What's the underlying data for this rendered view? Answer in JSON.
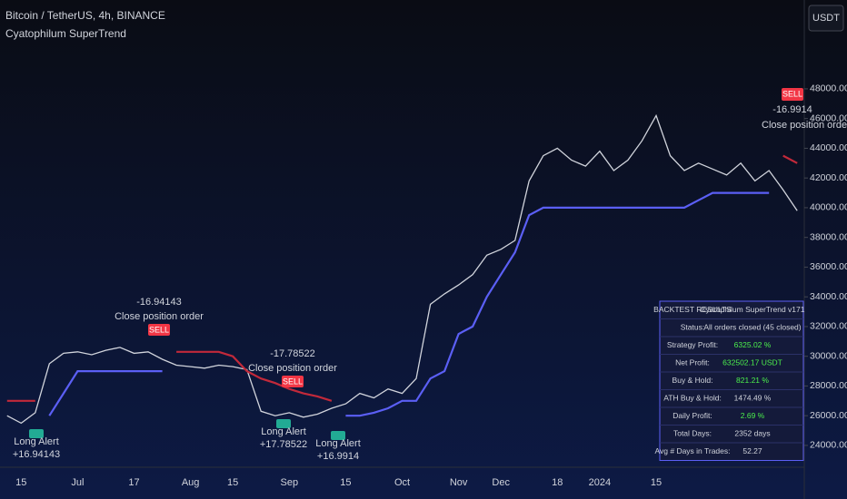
{
  "header": {
    "symbol": "Bitcoin / TetherUS, 4h, BINANCE",
    "indicator": "Cyatophilum SuperTrend",
    "currency_button": "USDT"
  },
  "chart_data": {
    "type": "line",
    "categories": [
      null,
      "15",
      null,
      null,
      null,
      "Jul",
      null,
      null,
      null,
      "17",
      null,
      null,
      null,
      "Aug",
      null,
      null,
      "15",
      null,
      null,
      null,
      "Sep",
      null,
      null,
      null,
      "15",
      null,
      null,
      null,
      "Oct",
      null,
      null,
      null,
      "Nov",
      null,
      null,
      "Dec",
      null,
      null,
      null,
      "18",
      null,
      null,
      "2024",
      null,
      null,
      null,
      "15",
      null,
      null,
      null,
      null,
      null,
      null,
      null,
      null,
      null,
      null
    ],
    "series": [
      {
        "color": "#d1d4dc",
        "values": [
          26000,
          25500,
          26200,
          29500,
          30200,
          30300,
          30100,
          30400,
          30600,
          30200,
          30300,
          29800,
          29400,
          29300,
          29200,
          29400,
          29300,
          29100,
          26300,
          26000,
          26200,
          25900,
          26100,
          26500,
          26800,
          27500,
          27200,
          27800,
          27500,
          28500,
          33500,
          34200,
          34800,
          35500,
          36800,
          37200,
          37800,
          41800,
          43500,
          44000,
          43200,
          42800,
          43800,
          42500,
          43200,
          44500,
          46200,
          43500,
          42500,
          43000,
          42600,
          42200,
          43000,
          41800,
          42500,
          41200,
          39800
        ]
      },
      {
        "color": "#5b5ff5",
        "values": [
          null,
          null,
          null,
          26000,
          27500,
          29000,
          29000,
          29000,
          29000,
          29000,
          29000,
          29000,
          null,
          null,
          null,
          null,
          null,
          null,
          null,
          null,
          null,
          null,
          null,
          null,
          26000,
          26000,
          26200,
          26500,
          27000,
          27000,
          28500,
          29000,
          31500,
          32000,
          34000,
          35500,
          37000,
          39500,
          40000,
          40000,
          40000,
          40000,
          40000,
          40000,
          40000,
          40000,
          40000,
          40000,
          40000,
          40500,
          41000,
          41000,
          41000,
          41000,
          41000,
          null,
          null
        ]
      },
      {
        "color": "#c2293a",
        "values": [
          27000,
          27000,
          27000,
          null,
          null,
          null,
          null,
          null,
          null,
          null,
          null,
          null,
          30300,
          30300,
          30300,
          30300,
          30000,
          29000,
          28500,
          28200,
          27800,
          27500,
          27300,
          27000,
          null,
          null,
          null,
          null,
          null,
          null,
          null,
          null,
          null,
          null,
          null,
          null,
          null,
          null,
          null,
          null,
          null,
          null,
          null,
          null,
          null,
          null,
          null,
          null,
          null,
          null,
          null,
          null,
          null,
          null,
          null,
          43500,
          43000
        ]
      }
    ],
    "ylim": [
      22530,
      53980
    ],
    "yticks": [
      {
        "value": 24000,
        "label": "24000.00"
      },
      {
        "value": 26000,
        "label": "26000.00"
      },
      {
        "value": 28000,
        "label": "28000.00"
      },
      {
        "value": 30000,
        "label": "30000.00"
      },
      {
        "value": 32000,
        "label": "32000.00"
      },
      {
        "value": 34000,
        "label": "34000.00"
      },
      {
        "value": 36000,
        "label": "36000.00"
      },
      {
        "value": 38000,
        "label": "38000.00"
      },
      {
        "value": 40000,
        "label": "40000.00"
      },
      {
        "value": 42000,
        "label": "42000.00"
      },
      {
        "value": 44000,
        "label": "44000.00"
      },
      {
        "value": 46000,
        "label": "46000.00"
      },
      {
        "value": 48000,
        "label": "48000.00"
      }
    ],
    "annotations": [
      {
        "profit": "-16.94143",
        "text": "Close position order",
        "tag": "SELL"
      },
      {
        "profit": "-17.78522",
        "text": "Close position order",
        "tag": "SELL"
      },
      {
        "profit": "-16.9914",
        "text": "Close position order",
        "tag": "SELL"
      },
      {
        "text": "Long Alert",
        "profit": "+16.94143"
      },
      {
        "text": "Long Alert",
        "profit": "+17.78522"
      },
      {
        "text": "Long Alert",
        "profit": "+16.9914"
      }
    ]
  },
  "table": {
    "header": [
      "BACKTEST RESULTS",
      "Cyatophilum SuperTrend v171"
    ],
    "rows": [
      [
        "Status:",
        "All orders closed (45 closed)"
      ],
      [
        "Strategy Profit:",
        "6325.02 %"
      ],
      [
        "Net Profit:",
        "632502.17 USDT"
      ],
      [
        "Buy & Hold:",
        "821.21 %"
      ],
      [
        "ATH Buy & Hold:",
        "1474.49 %"
      ],
      [
        "Daily Profit:",
        "2.69 %"
      ],
      [
        "Total Days:",
        "2352 days"
      ],
      [
        "Avg # Days in Trades:",
        "52.27"
      ]
    ]
  }
}
